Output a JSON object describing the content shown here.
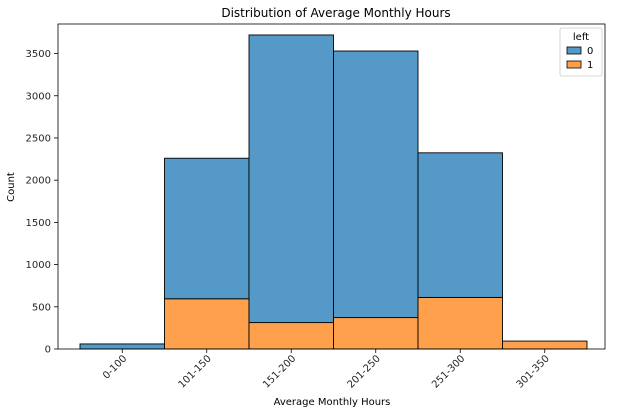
{
  "chart_data": {
    "type": "bar",
    "stacked": true,
    "title": "Distribution of Average Monthly Hours",
    "xlabel": "Average Monthly Hours",
    "ylabel": "Count",
    "categories": [
      "0-100",
      "101-150",
      "151-200",
      "201-250",
      "251-300",
      "301-350"
    ],
    "series": [
      {
        "name": "1",
        "values": [
          0,
          595,
          313,
          372,
          611,
          94
        ]
      },
      {
        "name": "0",
        "values": [
          60,
          1665,
          3407,
          3158,
          1713,
          0
        ]
      }
    ],
    "series_colors": {
      "0": "#5499C7",
      "1": "#FFA04C"
    },
    "ylim": [
      0,
      3850
    ],
    "yticks": [
      0,
      500,
      1000,
      1500,
      2000,
      2500,
      3000,
      3500
    ],
    "grid": false,
    "legend": {
      "title": "left",
      "placement": "top-right",
      "entries": [
        "0",
        "1"
      ]
    },
    "xtick_rotation": 45
  }
}
